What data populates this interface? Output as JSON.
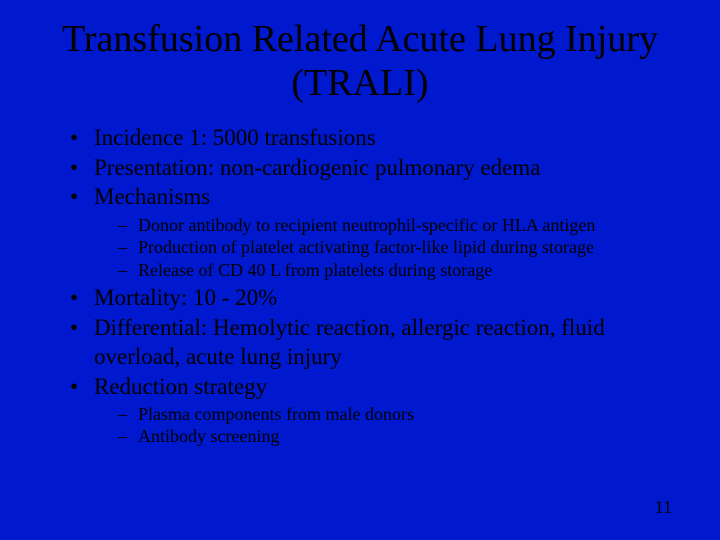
{
  "slide": {
    "background_color": "#0019ce",
    "text_color": "#000000",
    "title_fontsize": 38,
    "body_fontsize": 23,
    "sub_fontsize": 18,
    "font_family": "Times New Roman",
    "title": "Transfusion Related Acute Lung Injury (TRALI)",
    "bullets": [
      {
        "text": "Incidence 1: 5000 transfusions"
      },
      {
        "text": "Presentation: non-cardiogenic pulmonary edema"
      },
      {
        "text": "Mechanisms",
        "sub": [
          "Donor antibody to recipient neutrophil-specific or HLA antigen",
          "Production of platelet activating factor-like lipid during storage",
          "Release of CD 40 L from platelets during storage"
        ]
      },
      {
        "text": "Mortality: 10 - 20%"
      },
      {
        "text": "Differential: Hemolytic reaction, allergic reaction, fluid overload, acute lung injury"
      },
      {
        "text": "Reduction strategy",
        "sub": [
          "Plasma components from male donors",
          "Antibody screening"
        ]
      }
    ],
    "page_number": "11"
  }
}
